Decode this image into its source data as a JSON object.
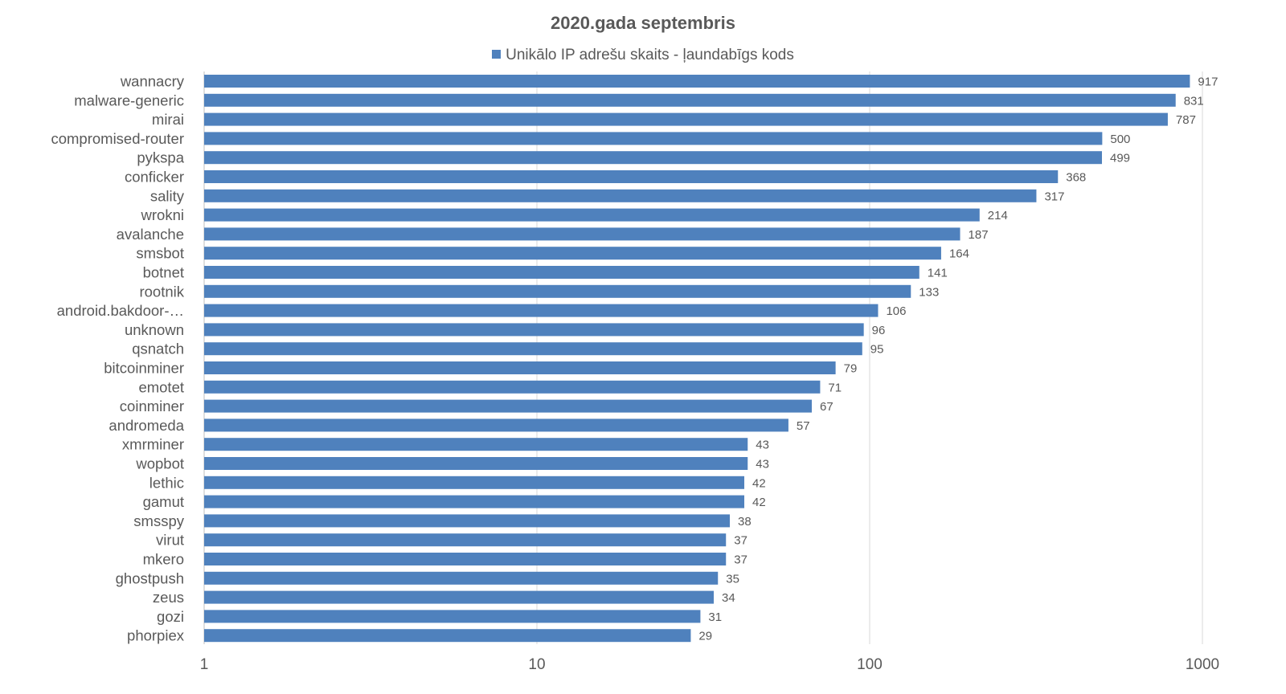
{
  "chart_data": {
    "type": "bar",
    "orientation": "horizontal",
    "title": "2020.gada septembris",
    "xlabel": "",
    "ylabel": "",
    "x_scale": "log",
    "xlim": [
      1,
      1000
    ],
    "x_ticks": [
      "1",
      "10",
      "100",
      "1000"
    ],
    "grid": "vertical major gridlines",
    "legend_position": "top",
    "data_labels": true,
    "categories": [
      "wannacry",
      "malware-generic",
      "mirai",
      "compromised-router",
      "pykspa",
      "conficker",
      "sality",
      "wrokni",
      "avalanche",
      "smsbot",
      "botnet",
      "rootnik",
      "android.bakdoor-…",
      "unknown",
      "qsnatch",
      "bitcoinminer",
      "emotet",
      "coinminer",
      "andromeda",
      "xmrminer",
      "wopbot",
      "lethic",
      "gamut",
      "smsspy",
      "virut",
      "mkero",
      "ghostpush",
      "zeus",
      "gozi",
      "phorpiex"
    ],
    "series": [
      {
        "name": "Unikālo IP adrešu skaits -  ļaundabīgs kods",
        "color": "#4f81bd",
        "values": [
          917,
          831,
          787,
          500,
          499,
          368,
          317,
          214,
          187,
          164,
          141,
          133,
          106,
          96,
          95,
          79,
          71,
          67,
          57,
          43,
          43,
          42,
          42,
          38,
          37,
          37,
          35,
          34,
          31,
          29
        ]
      }
    ]
  },
  "colors": {
    "bar": "#4f81bd",
    "text": "#595959",
    "gridline": "#d9d9d9",
    "axis": "#bfbfbf"
  }
}
